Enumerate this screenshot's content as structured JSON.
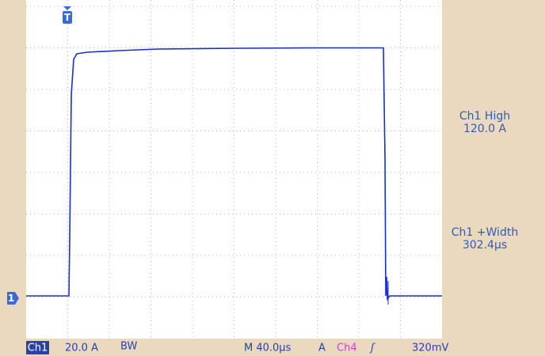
{
  "markers": {
    "trigger": "T",
    "channel": "1"
  },
  "measurements": [
    {
      "label": "Ch1 High",
      "value": "120.0 A"
    },
    {
      "label": "Ch1 +Width",
      "value": "302.4µs"
    }
  ],
  "status_bar": {
    "channel": "Ch1",
    "scale": "20.0 A",
    "bandwidth": "BW",
    "timebase": "M 40.0µs",
    "trigger_mode": "A",
    "trigger_source": "Ch4",
    "trigger_slope": "ʃ",
    "trigger_level": "320mV"
  }
}
